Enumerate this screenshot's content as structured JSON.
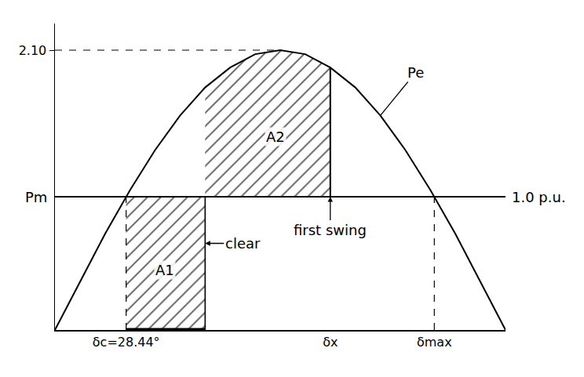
{
  "chart_data": {
    "type": "line",
    "x": [
      0,
      10,
      20,
      30,
      40,
      50,
      60,
      70,
      80,
      90,
      100,
      110,
      120,
      130,
      140,
      150,
      160,
      170,
      180
    ],
    "series": [
      {
        "name": "Pe",
        "color": "#000000",
        "line_style": "solid",
        "values": [
          0,
          0.36,
          0.72,
          1.05,
          1.35,
          1.61,
          1.82,
          1.97,
          2.07,
          2.1,
          2.07,
          1.97,
          1.82,
          1.61,
          1.35,
          1.05,
          0.72,
          0.36,
          0
        ]
      },
      {
        "name": "Pm",
        "color": "#000000",
        "line_style": "solid",
        "values": [
          1.0,
          1.0,
          1.0,
          1.0,
          1.0,
          1.0,
          1.0,
          1.0,
          1.0,
          1.0,
          1.0,
          1.0,
          1.0,
          1.0,
          1.0,
          1.0,
          1.0,
          1.0,
          1.0
        ]
      }
    ],
    "xlim": [
      0,
      180
    ],
    "xticks": [
      {
        "value": 28.44,
        "label": "δc=28.44°"
      },
      {
        "value": 110,
        "label": "δx"
      },
      {
        "value": 151.56,
        "label": "δmax"
      }
    ],
    "ylim": [
      0,
      2.3
    ],
    "yticks": [
      {
        "value": 2.1,
        "label": "2.10"
      }
    ],
    "grid": false,
    "annotations": [
      {
        "text": "A1",
        "x": 44,
        "y": 0.45
      },
      {
        "text": "A2",
        "x": 88,
        "y": 1.45
      },
      {
        "text": "clear",
        "x": 60,
        "y": 0.65
      },
      {
        "text": "first swing",
        "x": 110,
        "y": 1.0
      },
      {
        "text": "1.0 p.u.",
        "x": 180,
        "y": 1.0
      }
    ]
  }
}
